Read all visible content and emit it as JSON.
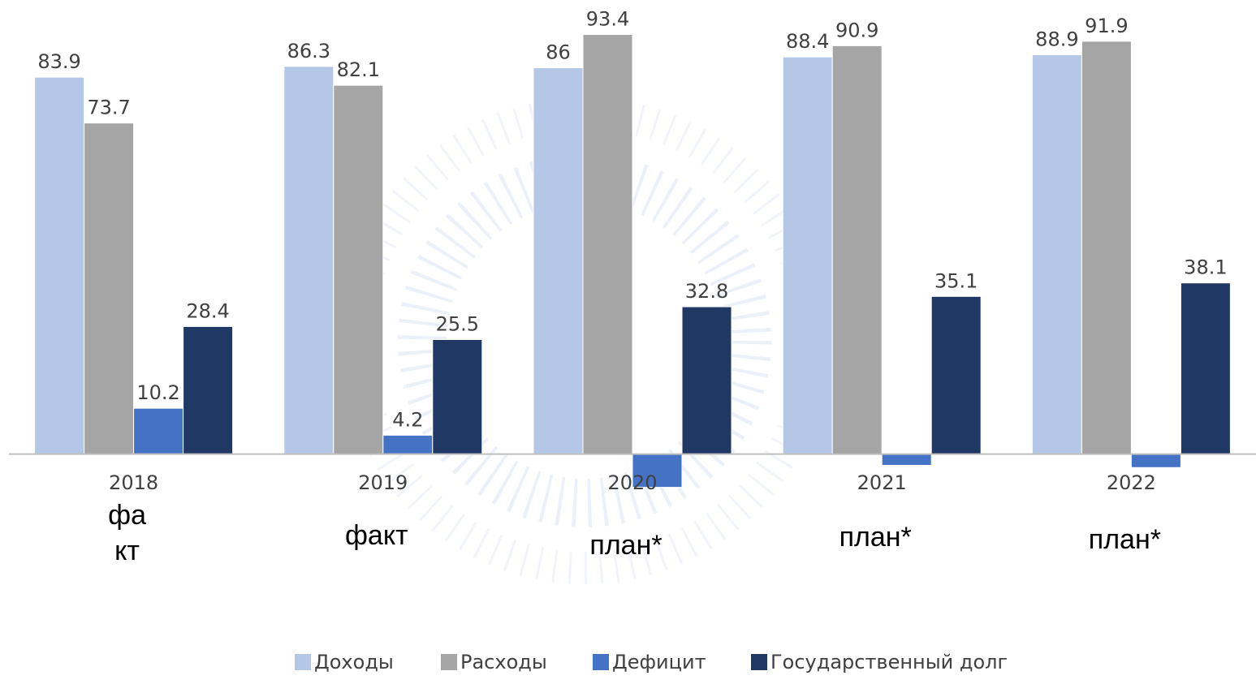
{
  "chart_data": {
    "type": "bar",
    "categories": [
      "2018",
      "2019",
      "2020",
      "2021",
      "2022"
    ],
    "annotations": [
      "факт",
      "факт",
      "план*",
      "план*",
      "план*"
    ],
    "series": [
      {
        "name": "Доходы",
        "color": "#b4c7e7",
        "values": [
          83.9,
          86.3,
          86,
          88.4,
          88.9
        ]
      },
      {
        "name": "Расходы",
        "color": "#a5a5a5",
        "values": [
          73.7,
          82.1,
          93.4,
          90.9,
          91.9
        ]
      },
      {
        "name": "Дефицит",
        "color": "#4472c4",
        "values": [
          10.2,
          4.2,
          -7.4,
          -2.5,
          -3
        ]
      },
      {
        "name": "Государственный долг",
        "color": "#203864",
        "values": [
          28.4,
          25.5,
          32.8,
          35.1,
          38.1
        ]
      }
    ],
    "ylim": [
      -10,
      100
    ],
    "legend": "bottom"
  }
}
